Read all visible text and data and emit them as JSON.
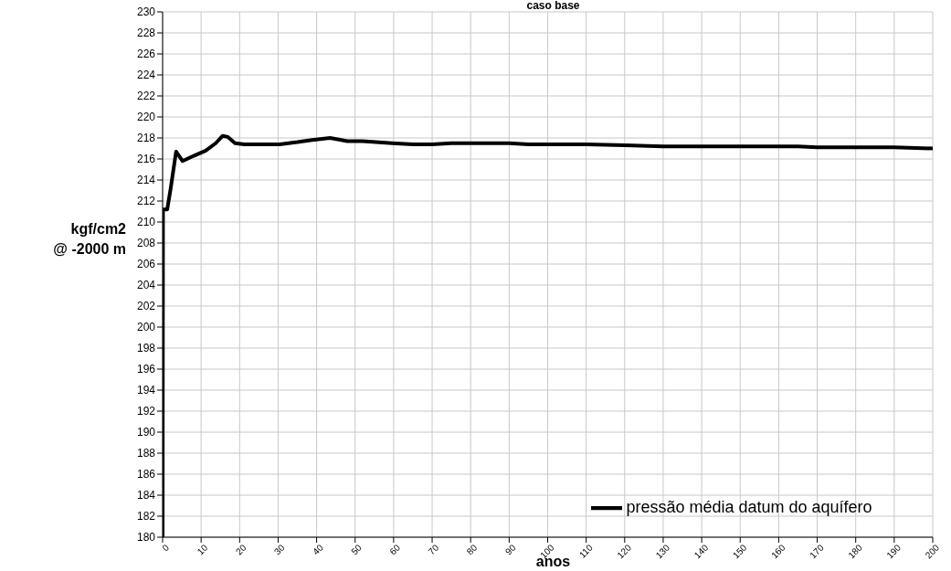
{
  "chart_data": {
    "type": "line",
    "title": "caso base",
    "xlabel": "anos",
    "ylabel": "kgf/cm2\n@ -2000 m",
    "xlim": [
      0,
      200
    ],
    "xticks": [
      0,
      10,
      20,
      30,
      40,
      50,
      60,
      70,
      80,
      90,
      100,
      110,
      120,
      130,
      140,
      150,
      160,
      170,
      180,
      190,
      200
    ],
    "ylim": [
      180,
      230
    ],
    "yticks": [
      180,
      182,
      184,
      186,
      188,
      190,
      192,
      194,
      196,
      198,
      200,
      202,
      204,
      206,
      208,
      210,
      212,
      214,
      216,
      218,
      220,
      222,
      224,
      226,
      228,
      230
    ],
    "grid": true,
    "legend": "bottom right",
    "marker": "none",
    "line_style": "solid",
    "series": [
      {
        "name": "pressão média datum do aquífero",
        "color": "#000000",
        "x": [
          0,
          0.1,
          1.2,
          2.1,
          3.5,
          5.2,
          8.1,
          11.2,
          13.8,
          15.6,
          16.9,
          18.8,
          21.2,
          25,
          30.4,
          35,
          38.8,
          43.5,
          48,
          51.9,
          59.6,
          65,
          70,
          75,
          80,
          90,
          95,
          110,
          120,
          130,
          150,
          165,
          170,
          190,
          200
        ],
        "values": [
          180,
          211.2,
          211.2,
          213.2,
          216.7,
          215.8,
          216.3,
          216.8,
          217.5,
          218.2,
          218.1,
          217.5,
          217.4,
          217.4,
          217.4,
          217.6,
          217.8,
          218.0,
          217.7,
          217.7,
          217.5,
          217.4,
          217.4,
          217.5,
          217.5,
          217.5,
          217.4,
          217.4,
          217.3,
          217.2,
          217.2,
          217.2,
          217.1,
          217.1,
          217.0
        ]
      }
    ]
  }
}
